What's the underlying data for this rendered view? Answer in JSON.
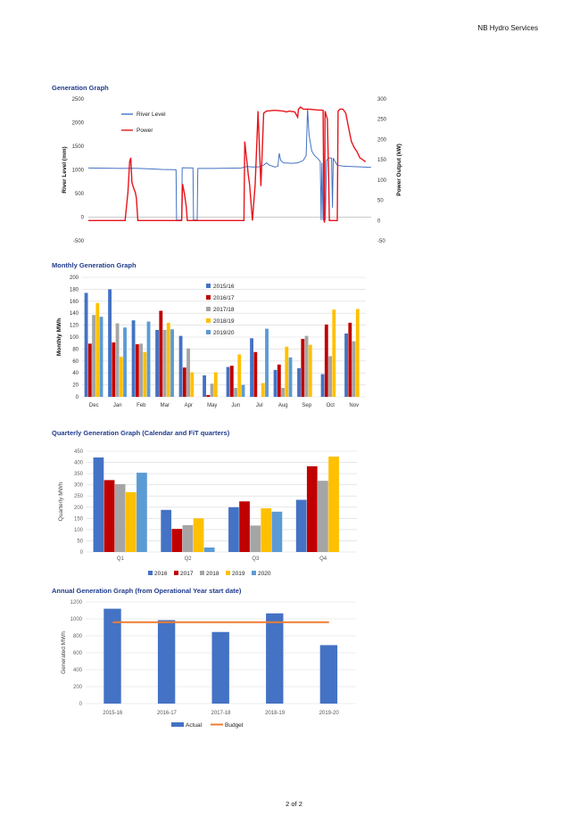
{
  "header": {
    "company": "NB Hydro Services"
  },
  "footer": {
    "page": "2 of 2"
  },
  "colors": {
    "blue": "#4472c4",
    "red": "#c00000",
    "gray": "#a5a5a5",
    "gold": "#ffc000",
    "lightblue": "#5b9bd5",
    "orange": "#ed7d31",
    "power": "#e8141b",
    "river": "#4472c4"
  },
  "sections": {
    "generation": "Generation Graph",
    "monthly": "Monthly Generation Graph",
    "quarterly": "Quarterly Generation Graph (Calendar and FiT quarters)",
    "annual": "Annual Generation Graph (from Operational Year start date)"
  },
  "chart_data": [
    {
      "type": "line",
      "title": "Generation Graph",
      "ylabel": "River Level (mm)",
      "y2label": "Power Output (kW)",
      "ylim": [
        -500,
        2500
      ],
      "y2lim": [
        -50,
        300
      ],
      "yticks": [
        -500,
        0,
        500,
        1000,
        1500,
        2000,
        2500
      ],
      "y2ticks": [
        -50,
        0,
        50,
        100,
        150,
        200,
        250,
        300
      ],
      "grid": false,
      "legend_position": "top-left",
      "series": [
        {
          "name": "River Level",
          "color": "#4472c4",
          "axis": "left",
          "points": [
            [
              0,
              1040
            ],
            [
              6,
              1035
            ],
            [
              12,
              1030
            ],
            [
              15,
              1035
            ],
            [
              18,
              1030
            ],
            [
              22,
              1020
            ],
            [
              26,
              1010
            ],
            [
              30,
              1005
            ],
            [
              31,
              1000
            ],
            [
              31.2,
              -60
            ],
            [
              33,
              -60
            ],
            [
              33.2,
              1045
            ],
            [
              37,
              1040
            ],
            [
              37.2,
              -60
            ],
            [
              38.5,
              -60
            ],
            [
              38.7,
              1030
            ],
            [
              44,
              1030
            ],
            [
              50,
              1035
            ],
            [
              54,
              1040
            ],
            [
              56,
              1070
            ],
            [
              58,
              1060
            ],
            [
              60,
              1060
            ],
            [
              62,
              1100
            ],
            [
              63,
              1150
            ],
            [
              64,
              1100
            ],
            [
              66,
              1060
            ],
            [
              67,
              1080
            ],
            [
              67.5,
              1350
            ],
            [
              68,
              1200
            ],
            [
              69,
              1150
            ],
            [
              72,
              1140
            ],
            [
              74,
              1150
            ],
            [
              76,
              1200
            ],
            [
              77,
              1300
            ],
            [
              77.5,
              2300
            ],
            [
              78,
              1750
            ],
            [
              79,
              1400
            ],
            [
              80,
              1300
            ],
            [
              81,
              1250
            ],
            [
              82,
              1180
            ],
            [
              82.3,
              -60
            ],
            [
              82.6,
              1150
            ],
            [
              83,
              -60
            ],
            [
              83.4,
              1100
            ],
            [
              83.8,
              -60
            ],
            [
              84.2,
              1200
            ],
            [
              85,
              1250
            ],
            [
              86,
              1250
            ],
            [
              86.3,
              200
            ],
            [
              86.6,
              1250
            ],
            [
              87,
              1200
            ],
            [
              88,
              1100
            ],
            [
              90,
              1080
            ],
            [
              93,
              1070
            ],
            [
              97,
              1060
            ],
            [
              100,
              1050
            ]
          ]
        },
        {
          "name": "Power",
          "color": "#e8141b",
          "axis": "right",
          "points": [
            [
              0,
              0
            ],
            [
              13,
              0
            ],
            [
              14,
              70
            ],
            [
              14.6,
              145
            ],
            [
              15,
              155
            ],
            [
              15.4,
              95
            ],
            [
              16,
              80
            ],
            [
              16.6,
              70
            ],
            [
              17,
              55
            ],
            [
              17.5,
              0
            ],
            [
              33,
              0
            ],
            [
              33.3,
              90
            ],
            [
              34,
              65
            ],
            [
              34.6,
              35
            ],
            [
              35,
              0
            ],
            [
              55,
              0
            ],
            [
              55.3,
              195
            ],
            [
              56,
              150
            ],
            [
              56.6,
              110
            ],
            [
              57,
              90
            ],
            [
              58,
              0
            ],
            [
              59,
              90
            ],
            [
              59.6,
              195
            ],
            [
              60,
              270
            ],
            [
              60.4,
              195
            ],
            [
              61,
              85
            ],
            [
              61.4,
              155
            ],
            [
              62,
              265
            ],
            [
              63,
              270
            ],
            [
              66,
              272
            ],
            [
              69,
              270
            ],
            [
              70,
              268
            ],
            [
              71,
              270
            ],
            [
              73,
              268
            ],
            [
              74,
              255
            ],
            [
              74.3,
              275
            ],
            [
              75,
              280
            ],
            [
              76,
              275
            ],
            [
              78,
              275
            ],
            [
              81,
              273
            ],
            [
              83,
              272
            ],
            [
              83.3,
              0
            ],
            [
              83.5,
              -5
            ],
            [
              83.7,
              270
            ],
            [
              84.5,
              250
            ],
            [
              85,
              100
            ],
            [
              85.2,
              0
            ],
            [
              86,
              0
            ],
            [
              88,
              0
            ],
            [
              88.3,
              270
            ],
            [
              89,
              275
            ],
            [
              90,
              275
            ],
            [
              91,
              265
            ],
            [
              92,
              230
            ],
            [
              93,
              195
            ],
            [
              94,
              180
            ],
            [
              95,
              170
            ],
            [
              96,
              155
            ],
            [
              97,
              150
            ],
            [
              98,
              145
            ]
          ]
        }
      ]
    },
    {
      "type": "bar",
      "title": "Monthly Generation Graph",
      "ylabel": "Monthly MWh",
      "ylim": [
        0,
        200
      ],
      "yticks": [
        0,
        20,
        40,
        60,
        80,
        100,
        120,
        140,
        160,
        180,
        200
      ],
      "grid": true,
      "legend_position": "top-center",
      "categories": [
        "Dec",
        "Jan",
        "Feb",
        "Mar",
        "Apr",
        "May",
        "Jun",
        "Jul",
        "Aug",
        "Sep",
        "Oct",
        "Nov"
      ],
      "series": [
        {
          "name": "2015/16",
          "color": "#4472c4",
          "values": [
            174,
            180,
            128,
            112,
            102,
            36,
            50,
            98,
            45,
            48,
            38,
            106
          ]
        },
        {
          "name": "2016/17",
          "color": "#c00000",
          "values": [
            89,
            91,
            88,
            144,
            49,
            3,
            52,
            75,
            54,
            97,
            121,
            124
          ]
        },
        {
          "name": "2017/18",
          "color": "#a5a5a5",
          "values": [
            137,
            123,
            89,
            112,
            81,
            22,
            15,
            0,
            15,
            102,
            68,
            93
          ]
        },
        {
          "name": "2018/19",
          "color": "#ffc000",
          "values": [
            157,
            67,
            75,
            124,
            41,
            41,
            71,
            23,
            84,
            87,
            146,
            147
          ]
        },
        {
          "name": "2019/20",
          "color": "#5b9bd5",
          "values": [
            134,
            116,
            126,
            113,
            0,
            0,
            20,
            114,
            66,
            0,
            0,
            0
          ]
        }
      ]
    },
    {
      "type": "bar",
      "title": "Quarterly Generation Graph (Calendar and FiT quarters)",
      "ylabel": "Quarterly MWh",
      "ylim": [
        0,
        450
      ],
      "yticks": [
        0,
        50,
        100,
        150,
        200,
        250,
        300,
        350,
        400,
        450
      ],
      "grid": true,
      "legend_position": "bottom",
      "categories": [
        "Q1",
        "Q2",
        "Q3",
        "Q4"
      ],
      "series": [
        {
          "name": "2016",
          "color": "#4472c4",
          "values": [
            422,
            188,
            200,
            233
          ]
        },
        {
          "name": "2017",
          "color": "#c00000",
          "values": [
            321,
            103,
            226,
            383
          ]
        },
        {
          "name": "2018",
          "color": "#a5a5a5",
          "values": [
            303,
            120,
            118,
            318
          ]
        },
        {
          "name": "2019",
          "color": "#ffc000",
          "values": [
            267,
            150,
            195,
            426
          ]
        },
        {
          "name": "2020",
          "color": "#5b9bd5",
          "values": [
            354,
            20,
            180,
            0
          ]
        }
      ]
    },
    {
      "type": "bar",
      "title": "Annual Generation Graph (from Operational Year start date)",
      "ylabel": "Generated MWh",
      "ylim": [
        0,
        1200
      ],
      "yticks": [
        0,
        200,
        400,
        600,
        800,
        1000,
        1200
      ],
      "grid": true,
      "legend_position": "bottom",
      "categories": [
        "2015-16",
        "2016-17",
        "2017-18",
        "2018-19",
        "2019-20"
      ],
      "series": [
        {
          "name": "Actual",
          "color": "#4472c4",
          "values": [
            1120,
            985,
            845,
            1065,
            690
          ]
        },
        {
          "name": "Budget",
          "color": "#ed7d31",
          "type": "line",
          "values": [
            960,
            960,
            960,
            960,
            960
          ]
        }
      ]
    }
  ]
}
